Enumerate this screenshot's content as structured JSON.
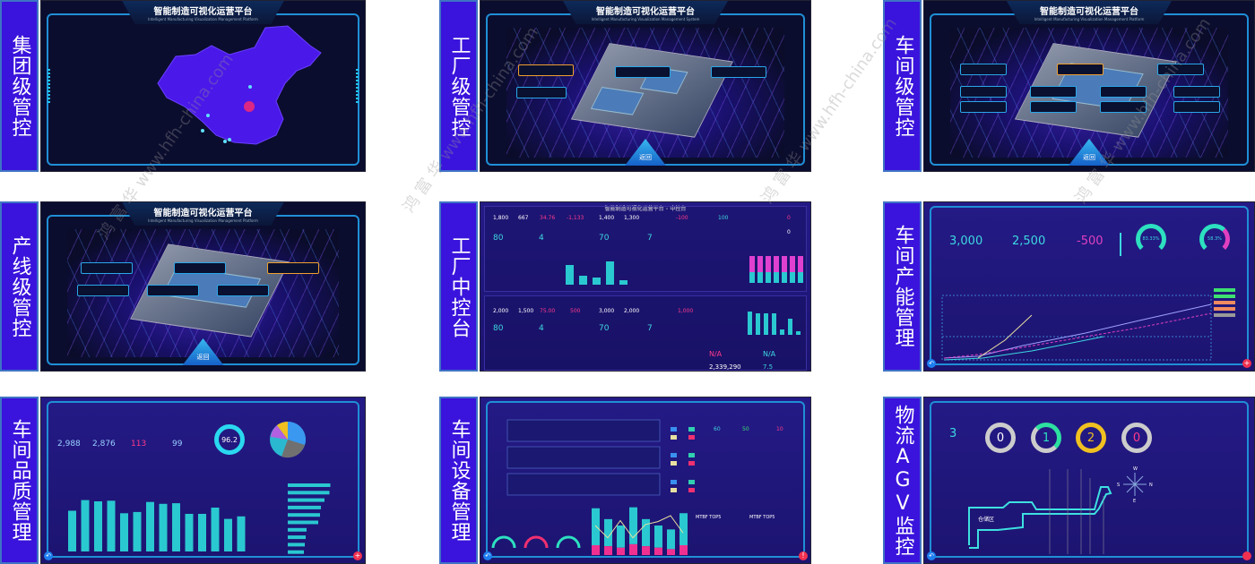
{
  "watermark": "鸿 富 华 www.hfh-china.com",
  "colors": {
    "label_bg": "#3a14dc",
    "cyan": "#3dd8e0",
    "magenta": "#e040c0",
    "frame": "#1f8fd6"
  },
  "cells": {
    "group": {
      "label": "集团级管控",
      "title": "智能制造可视化运营平台",
      "subtitle": "Intelligent Manufacturing Visualization Management Platform",
      "map_icon": "china-map",
      "hq_marker_color": "#ff2d6a"
    },
    "factory": {
      "label": "工厂级管控",
      "title": "智能制造可视化运营平台",
      "subtitle": "Intelligent Manufacturing Visualization Management System",
      "back": "返回"
    },
    "workshop": {
      "label": "车间级管控",
      "title": "智能制造可视化运营平台",
      "subtitle": "Intelligent Manufacturing Visualization Management Platform",
      "back": "返回"
    },
    "line": {
      "label": "产线级管控",
      "title": "智能制造可视化运营平台",
      "subtitle": "Intelligent Manufacturing Visualization Management Platform",
      "back": "返回"
    },
    "control": {
      "label": "工厂中控台",
      "title": "智能制造可视化运营平台 - 中控台",
      "top": {
        "v1": "1,800",
        "v2": "667",
        "v3": "34.76",
        "v4": "-1,133",
        "v5": "1,400",
        "v6": "1,300",
        "v7": "-100",
        "k1": "80",
        "k2": "4",
        "k3": "70",
        "k4": "7",
        "r1": "100",
        "r2": "0",
        "r3": "0"
      },
      "bottom": {
        "v1": "2,000",
        "v2": "1,500",
        "v3": "75.00",
        "v4": "500",
        "v5": "3,000",
        "v6": "2,000",
        "v7": "1,000",
        "k1": "80",
        "k2": "4",
        "k3": "70",
        "k4": "7",
        "na1": "N/A",
        "na2": "N/A",
        "total": "2,339,290",
        "t2": "7.5"
      }
    },
    "capacity": {
      "label": "车间产能管理",
      "v1": "3,000",
      "v2": "2,500",
      "v3": "-500",
      "g1": "83.33%",
      "g2": "58.3%"
    },
    "quality": {
      "label": "车间品质管理",
      "v1": "2,988",
      "v2": "2,876",
      "v3": "113",
      "v4": "99",
      "rate": "96.2"
    },
    "equipment": {
      "label": "车间设备管理",
      "c1": "60",
      "c2": "50",
      "c3": "10",
      "table_title": "MTBF TOP5",
      "table_title2": "MTBF TOP5"
    },
    "agv": {
      "label": "物流AGV监控",
      "total": "3",
      "r1": "0",
      "r2": "1",
      "r3": "2",
      "r4": "0",
      "area": "仓储区",
      "compass": {
        "n": "N",
        "s": "S",
        "w": "W",
        "e": "E"
      }
    }
  },
  "chart_data": [
    {
      "type": "bar",
      "name_hint": "quality-bars",
      "values": [
        65,
        82,
        80,
        81,
        61,
        63,
        79,
        76,
        77,
        60,
        60,
        70,
        52,
        56
      ],
      "ylim": [
        0,
        100
      ]
    },
    {
      "type": "bar",
      "name_hint": "equipment-bars",
      "series": [
        {
          "values": [
            75,
            55,
            45,
            75,
            55,
            45,
            40,
            65
          ]
        },
        {
          "values": [
            20,
            18,
            15,
            22,
            18,
            15,
            12,
            20
          ]
        }
      ],
      "line": [
        60,
        35,
        70,
        35,
        62,
        68,
        80,
        45
      ]
    }
  ]
}
